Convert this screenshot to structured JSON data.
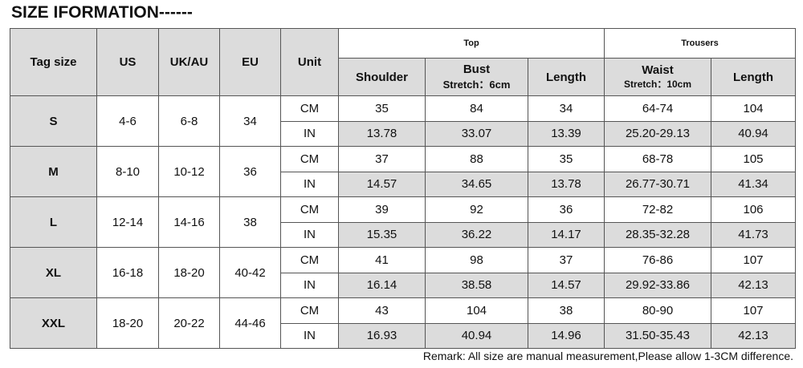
{
  "title": "SIZE IFORMATION------",
  "table": {
    "header": {
      "tag_size": "Tag size",
      "us": "US",
      "uk_au": "UK/AU",
      "eu": "EU",
      "unit": "Unit",
      "top": "Top",
      "trousers": "Trousers",
      "shoulder": "Shoulder",
      "bust": "Bust",
      "bust_note": "Stretch：6cm",
      "top_length": "Length",
      "waist": "Waist",
      "waist_note": "Stretch：10cm",
      "trousers_length": "Length"
    },
    "sizes": [
      {
        "tag": "S",
        "us": "4-6",
        "uk_au": "6-8",
        "eu": "34",
        "rows": [
          [
            "CM",
            "35",
            "84",
            "34",
            "64-74",
            "104"
          ],
          [
            "IN",
            "13.78",
            "33.07",
            "13.39",
            "25.20-29.13",
            "40.94"
          ]
        ]
      },
      {
        "tag": "M",
        "us": "8-10",
        "uk_au": "10-12",
        "eu": "36",
        "rows": [
          [
            "CM",
            "37",
            "88",
            "35",
            "68-78",
            "105"
          ],
          [
            "IN",
            "14.57",
            "34.65",
            "13.78",
            "26.77-30.71",
            "41.34"
          ]
        ]
      },
      {
        "tag": "L",
        "us": "12-14",
        "uk_au": "14-16",
        "eu": "38",
        "rows": [
          [
            "CM",
            "39",
            "92",
            "36",
            "72-82",
            "106"
          ],
          [
            "IN",
            "15.35",
            "36.22",
            "14.17",
            "28.35-32.28",
            "41.73"
          ]
        ]
      },
      {
        "tag": "XL",
        "us": "16-18",
        "uk_au": "18-20",
        "eu": "40-42",
        "rows": [
          [
            "CM",
            "41",
            "98",
            "37",
            "76-86",
            "107"
          ],
          [
            "IN",
            "16.14",
            "38.58",
            "14.57",
            "29.92-33.86",
            "42.13"
          ]
        ]
      },
      {
        "tag": "XXL",
        "us": "18-20",
        "uk_au": "20-22",
        "eu": "44-46",
        "rows": [
          [
            "CM",
            "43",
            "104",
            "38",
            "80-90",
            "107"
          ],
          [
            "IN",
            "16.93",
            "40.94",
            "14.96",
            "31.50-35.43",
            "42.13"
          ]
        ]
      }
    ]
  },
  "remark": "Remark: All size are manual measurement,Please allow 1-3CM difference."
}
